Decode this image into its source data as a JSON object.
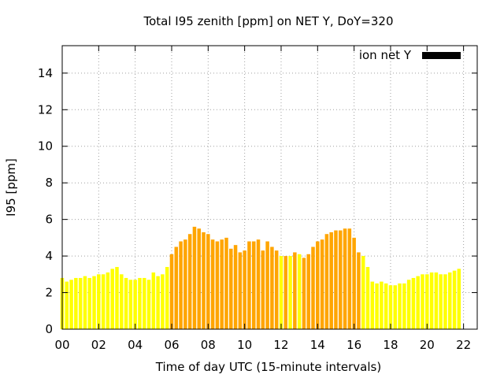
{
  "chart_data": {
    "type": "bar",
    "title": "Total I95 zenith [ppm] on NET Y, DoY=320",
    "xlabel": "Time of day UTC (15-minute intervals)",
    "ylabel": "I95 [ppm]",
    "xlim": [
      0,
      22.75
    ],
    "ylim": [
      0,
      15.5
    ],
    "x_interval_hours": 0.25,
    "x_ticks": [
      0,
      2,
      4,
      6,
      8,
      10,
      12,
      14,
      16,
      18,
      20,
      22
    ],
    "x_tick_labels": [
      "00",
      "02",
      "04",
      "06",
      "08",
      "10",
      "12",
      "14",
      "16",
      "18",
      "20",
      "22"
    ],
    "y_ticks": [
      0,
      2,
      4,
      6,
      8,
      10,
      12,
      14
    ],
    "y_tick_labels": [
      "0",
      "2",
      "4",
      "6",
      "8",
      "10",
      "12",
      "14"
    ],
    "grid": true,
    "legend": {
      "label": "ion net Y",
      "placement": "top-right",
      "color": "#000000"
    },
    "colors": {
      "low": "#ffff00",
      "mid": "#ffa500"
    },
    "values": [
      2.8,
      2.6,
      2.7,
      2.8,
      2.8,
      2.9,
      2.8,
      2.9,
      3.0,
      3.0,
      3.1,
      3.3,
      3.4,
      3.0,
      2.8,
      2.7,
      2.7,
      2.8,
      2.8,
      2.7,
      3.1,
      2.9,
      3.0,
      3.4,
      4.1,
      4.5,
      4.8,
      4.9,
      5.2,
      5.6,
      5.5,
      5.3,
      5.2,
      4.9,
      4.8,
      4.9,
      5.0,
      4.4,
      4.6,
      4.2,
      4.3,
      4.8,
      4.8,
      4.9,
      4.3,
      4.8,
      4.5,
      4.3,
      4.0,
      4.0,
      4.0,
      4.2,
      4.1,
      3.9,
      4.1,
      4.5,
      4.8,
      4.9,
      5.2,
      5.3,
      5.4,
      5.4,
      5.5,
      5.5,
      5.0,
      4.2,
      4.0,
      3.4,
      2.6,
      2.5,
      2.6,
      2.5,
      2.4,
      2.4,
      2.5,
      2.5,
      2.7,
      2.8,
      2.9,
      3.0,
      3.0,
      3.1,
      3.1,
      3.0,
      3.0,
      3.1,
      3.2,
      3.3
    ],
    "bar_colors": [
      "low",
      "low",
      "low",
      "low",
      "low",
      "low",
      "low",
      "low",
      "low",
      "low",
      "low",
      "low",
      "low",
      "low",
      "low",
      "low",
      "low",
      "low",
      "low",
      "low",
      "low",
      "low",
      "low",
      "low",
      "mid",
      "mid",
      "mid",
      "mid",
      "mid",
      "mid",
      "mid",
      "mid",
      "mid",
      "mid",
      "mid",
      "mid",
      "mid",
      "mid",
      "mid",
      "mid",
      "mid",
      "mid",
      "mid",
      "mid",
      "mid",
      "mid",
      "mid",
      "mid",
      "low",
      "mid",
      "low",
      "mid",
      "low",
      "mid",
      "mid",
      "mid",
      "mid",
      "mid",
      "mid",
      "mid",
      "mid",
      "mid",
      "mid",
      "mid",
      "mid",
      "mid",
      "low",
      "low",
      "low",
      "low",
      "low",
      "low",
      "low",
      "low",
      "low",
      "low",
      "low",
      "low",
      "low",
      "low",
      "low",
      "low",
      "low",
      "low",
      "low",
      "low",
      "low",
      "low"
    ]
  }
}
